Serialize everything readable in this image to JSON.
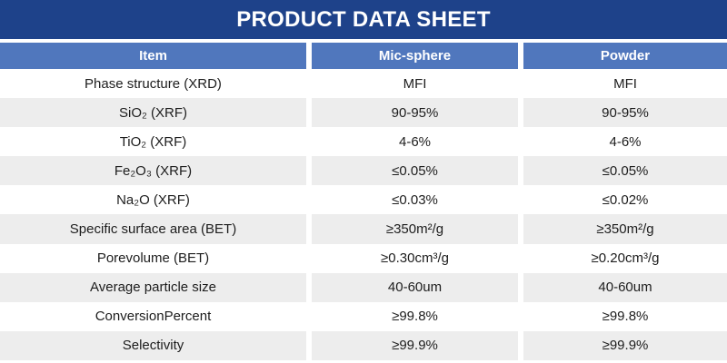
{
  "title": "PRODUCT DATA SHEET",
  "colors": {
    "title_bg": "#1e428a",
    "header_bg": "#5077bd",
    "row_alt_bg": "#ededed",
    "header_text": "#ffffff",
    "body_text": "#1d1d1d"
  },
  "header": {
    "columns": [
      "Item",
      "Mic-sphere",
      "Powder"
    ]
  },
  "rows": [
    {
      "item": "Phase structure (XRD)",
      "mic": "MFI",
      "powder": "MFI"
    },
    {
      "item": "SiO₂ (XRF)",
      "mic": "90-95%",
      "powder": "90-95%"
    },
    {
      "item": "TiO₂ (XRF)",
      "mic": "4-6%",
      "powder": "4-6%"
    },
    {
      "item": "Fe₂O₃ (XRF)",
      "mic": "≤0.05%",
      "powder": "≤0.05%"
    },
    {
      "item": "Na₂O (XRF)",
      "mic": "≤0.03%",
      "powder": "≤0.02%"
    },
    {
      "item": "Specific surface area (BET)",
      "mic": "≥350m²/g",
      "powder": "≥350m²/g"
    },
    {
      "item": "Porevolume (BET)",
      "mic": "≥0.30cm³/g",
      "powder": "≥0.20cm³/g"
    },
    {
      "item": "Average particle size",
      "mic": "40-60um",
      "powder": "40-60um"
    },
    {
      "item": "ConversionPercent",
      "mic": "≥99.8%",
      "powder": "≥99.8%"
    },
    {
      "item": "Selectivity",
      "mic": "≥99.9%",
      "powder": "≥99.9%"
    }
  ]
}
